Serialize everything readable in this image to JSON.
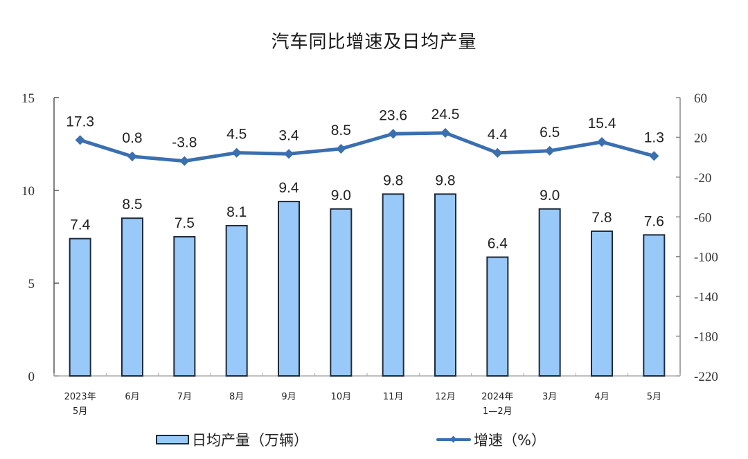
{
  "title": "汽车同比增速及日均产量",
  "legend": {
    "bar_label": "日均产量（万辆）",
    "line_label": "增速（%）"
  },
  "colors": {
    "bar_fill": "#99c9f8",
    "bar_stroke": "#1e2a3a",
    "line": "#3a6fb0",
    "axis": "#666666"
  },
  "chart_data": {
    "type": "bar+line",
    "title": "汽车同比增速及日均产量",
    "categories": [
      "2023年\n5月",
      "6月",
      "7月",
      "8月",
      "9月",
      "10月",
      "11月",
      "12月",
      "2024年\n1—2月",
      "3月",
      "4月",
      "5月"
    ],
    "category_lines": [
      [
        "2023年",
        "5月"
      ],
      [
        "6月"
      ],
      [
        "7月"
      ],
      [
        "8月"
      ],
      [
        "9月"
      ],
      [
        "10月"
      ],
      [
        "11月"
      ],
      [
        "12月"
      ],
      [
        "2024年",
        "1—2月"
      ],
      [
        "3月"
      ],
      [
        "4月"
      ],
      [
        "5月"
      ]
    ],
    "series": [
      {
        "name": "日均产量（万辆）",
        "type": "bar",
        "axis": "left",
        "values": [
          7.4,
          8.5,
          7.5,
          8.1,
          9.4,
          9.0,
          9.8,
          9.8,
          6.4,
          9.0,
          7.8,
          7.6
        ],
        "labels": [
          "7.4",
          "8.5",
          "7.5",
          "8.1",
          "9.4",
          "9.0",
          "9.8",
          "9.8",
          "6.4",
          "9.0",
          "7.8",
          "7.6"
        ]
      },
      {
        "name": "增速（%）",
        "type": "line",
        "axis": "right",
        "values": [
          17.3,
          0.8,
          -3.8,
          4.5,
          3.4,
          8.5,
          23.6,
          24.5,
          4.4,
          6.5,
          15.4,
          1.3
        ],
        "labels": [
          "17.3",
          "0.8",
          "-3.8",
          "4.5",
          "3.4",
          "8.5",
          "23.6",
          "24.5",
          "4.4",
          "6.5",
          "15.4",
          "1.3"
        ]
      }
    ],
    "y_left": {
      "min": 0,
      "max": 15,
      "ticks": [
        0,
        5,
        10,
        15
      ],
      "tick_labels": [
        "0",
        "5",
        "10",
        "15"
      ]
    },
    "y_right": {
      "min": -220,
      "max": 60,
      "ticks": [
        -220,
        -180,
        -140,
        -100,
        -60,
        -20,
        20,
        60
      ],
      "tick_labels": [
        "-220",
        "-180",
        "-140",
        "-100",
        "-60",
        "-20",
        "20",
        "60"
      ]
    },
    "xlabel": "",
    "ylabel": "",
    "grid": false,
    "legend_position": "bottom"
  }
}
